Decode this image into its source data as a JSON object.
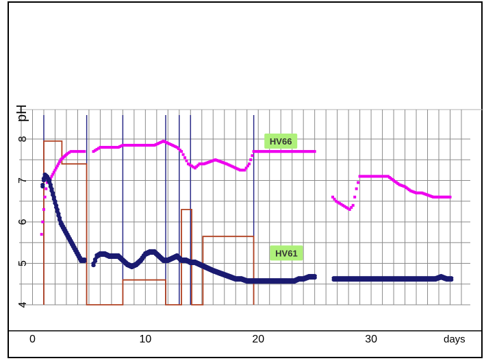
{
  "chart_data": {
    "type": "scatter",
    "x_axis": {
      "label": "days",
      "range": [
        -1.5,
        38.5
      ],
      "major_ticks": [
        0,
        10,
        20,
        30
      ],
      "tick_labels": [
        "0",
        "10",
        "20",
        "30"
      ],
      "minor_tick_step": 1
    },
    "y_axis": {
      "label": "pH",
      "range": [
        3.9,
        8.4
      ],
      "ticks": [
        4,
        5,
        6,
        7,
        8
      ],
      "tick_labels": [
        "4",
        "5",
        "6",
        "7",
        "8"
      ]
    },
    "grid": true,
    "series": [
      {
        "name": "HV66",
        "color": "#ee00ee",
        "marker": "square",
        "segments": [
          [
            [
              0.8,
              5.7
            ],
            [
              0.9,
              6.0
            ],
            [
              1.0,
              6.3
            ],
            [
              1.1,
              6.6
            ],
            [
              1.2,
              6.8
            ],
            [
              1.3,
              6.95
            ],
            [
              1.5,
              7.0
            ],
            [
              1.7,
              7.1
            ],
            [
              1.9,
              7.2
            ],
            [
              2.1,
              7.3
            ],
            [
              2.3,
              7.4
            ],
            [
              2.5,
              7.5
            ],
            [
              2.7,
              7.55
            ],
            [
              2.9,
              7.6
            ],
            [
              3.1,
              7.65
            ],
            [
              3.4,
              7.7
            ],
            [
              3.7,
              7.7
            ],
            [
              4.0,
              7.7
            ],
            [
              4.3,
              7.7
            ],
            [
              4.6,
              7.7
            ]
          ],
          [
            [
              5.4,
              7.7
            ],
            [
              5.7,
              7.75
            ],
            [
              6.0,
              7.8
            ],
            [
              6.4,
              7.8
            ],
            [
              6.8,
              7.8
            ],
            [
              7.2,
              7.8
            ],
            [
              7.6,
              7.8
            ],
            [
              8.0,
              7.85
            ],
            [
              8.4,
              7.85
            ],
            [
              8.8,
              7.85
            ],
            [
              9.2,
              7.85
            ],
            [
              9.6,
              7.85
            ],
            [
              10.0,
              7.85
            ],
            [
              10.4,
              7.85
            ],
            [
              10.8,
              7.85
            ],
            [
              11.2,
              7.9
            ],
            [
              11.6,
              7.95
            ],
            [
              12.0,
              7.9
            ],
            [
              12.4,
              7.85
            ],
            [
              12.8,
              7.8
            ],
            [
              13.2,
              7.7
            ],
            [
              13.5,
              7.55
            ],
            [
              13.8,
              7.4
            ],
            [
              14.1,
              7.35
            ],
            [
              14.4,
              7.3
            ],
            [
              14.8,
              7.4
            ],
            [
              15.2,
              7.4
            ],
            [
              15.7,
              7.45
            ],
            [
              16.2,
              7.5
            ],
            [
              16.7,
              7.45
            ],
            [
              17.2,
              7.4
            ],
            [
              17.6,
              7.35
            ],
            [
              18.0,
              7.3
            ],
            [
              18.4,
              7.25
            ],
            [
              18.8,
              7.25
            ],
            [
              19.2,
              7.4
            ],
            [
              19.6,
              7.7
            ],
            [
              20.0,
              7.7
            ],
            [
              20.5,
              7.7
            ],
            [
              21.0,
              7.7
            ],
            [
              21.5,
              7.7
            ],
            [
              22.0,
              7.7
            ],
            [
              22.5,
              7.7
            ],
            [
              23.0,
              7.7
            ],
            [
              23.5,
              7.7
            ],
            [
              24.0,
              7.7
            ],
            [
              24.5,
              7.7
            ],
            [
              25.0,
              7.7
            ]
          ],
          [
            [
              26.6,
              6.6
            ],
            [
              26.9,
              6.5
            ],
            [
              27.2,
              6.45
            ],
            [
              27.5,
              6.4
            ],
            [
              27.8,
              6.35
            ],
            [
              28.1,
              6.3
            ],
            [
              28.4,
              6.4
            ],
            [
              28.7,
              6.8
            ],
            [
              29.0,
              7.1
            ],
            [
              29.5,
              7.1
            ],
            [
              30.0,
              7.1
            ],
            [
              30.5,
              7.1
            ],
            [
              31.0,
              7.1
            ],
            [
              31.5,
              7.1
            ],
            [
              32.0,
              7.0
            ],
            [
              32.5,
              6.9
            ],
            [
              33.0,
              6.85
            ],
            [
              33.5,
              6.75
            ],
            [
              34.0,
              6.7
            ],
            [
              34.5,
              6.7
            ],
            [
              35.0,
              6.65
            ],
            [
              35.5,
              6.6
            ],
            [
              36.0,
              6.6
            ],
            [
              36.5,
              6.6
            ],
            [
              37.0,
              6.6
            ]
          ]
        ]
      },
      {
        "name": "HV61",
        "color": "#1a1a70",
        "marker": "oval",
        "segments": [
          [
            [
              0.9,
              6.9
            ],
            [
              1.0,
              7.05
            ],
            [
              1.1,
              7.15
            ],
            [
              1.3,
              7.1
            ],
            [
              1.5,
              7.0
            ],
            [
              1.7,
              6.8
            ],
            [
              1.9,
              6.6
            ],
            [
              2.1,
              6.4
            ],
            [
              2.3,
              6.2
            ],
            [
              2.5,
              6.0
            ],
            [
              2.7,
              5.9
            ],
            [
              2.9,
              5.8
            ],
            [
              3.1,
              5.7
            ],
            [
              3.3,
              5.6
            ],
            [
              3.5,
              5.5
            ],
            [
              3.7,
              5.4
            ],
            [
              3.9,
              5.3
            ],
            [
              4.1,
              5.2
            ],
            [
              4.3,
              5.1
            ],
            [
              4.6,
              5.1
            ]
          ],
          [
            [
              5.4,
              5.0
            ],
            [
              5.7,
              5.2
            ],
            [
              6.0,
              5.25
            ],
            [
              6.4,
              5.25
            ],
            [
              6.8,
              5.2
            ],
            [
              7.2,
              5.2
            ],
            [
              7.6,
              5.2
            ],
            [
              8.0,
              5.1
            ],
            [
              8.4,
              5.0
            ],
            [
              8.8,
              4.95
            ],
            [
              9.2,
              5.0
            ],
            [
              9.6,
              5.1
            ],
            [
              10.0,
              5.25
            ],
            [
              10.4,
              5.3
            ],
            [
              10.8,
              5.3
            ],
            [
              11.2,
              5.2
            ],
            [
              11.6,
              5.1
            ],
            [
              12.0,
              5.1
            ],
            [
              12.4,
              5.15
            ],
            [
              12.8,
              5.2
            ],
            [
              13.2,
              5.1
            ],
            [
              13.6,
              5.1
            ],
            [
              14.0,
              5.05
            ],
            [
              14.4,
              5.05
            ],
            [
              14.8,
              5.0
            ],
            [
              15.2,
              4.95
            ],
            [
              15.6,
              4.9
            ],
            [
              16.0,
              4.85
            ],
            [
              16.5,
              4.8
            ],
            [
              17.0,
              4.75
            ],
            [
              17.5,
              4.7
            ],
            [
              18.0,
              4.65
            ],
            [
              18.5,
              4.65
            ],
            [
              19.0,
              4.6
            ],
            [
              19.5,
              4.6
            ],
            [
              20.0,
              4.6
            ],
            [
              20.5,
              4.6
            ],
            [
              21.0,
              4.6
            ],
            [
              21.5,
              4.6
            ],
            [
              22.0,
              4.6
            ],
            [
              22.5,
              4.6
            ],
            [
              23.2,
              4.6
            ],
            [
              23.6,
              4.65
            ],
            [
              24.0,
              4.65
            ],
            [
              24.5,
              4.7
            ],
            [
              25.0,
              4.7
            ]
          ],
          [
            [
              26.7,
              4.65
            ],
            [
              27.2,
              4.65
            ],
            [
              27.7,
              4.65
            ],
            [
              28.2,
              4.65
            ],
            [
              28.7,
              4.65
            ],
            [
              29.2,
              4.65
            ],
            [
              29.7,
              4.65
            ],
            [
              30.2,
              4.65
            ],
            [
              30.7,
              4.65
            ],
            [
              31.2,
              4.65
            ],
            [
              31.7,
              4.65
            ],
            [
              32.2,
              4.65
            ],
            [
              32.7,
              4.65
            ],
            [
              33.2,
              4.65
            ],
            [
              33.7,
              4.65
            ],
            [
              34.2,
              4.65
            ],
            [
              34.7,
              4.65
            ],
            [
              35.2,
              4.65
            ],
            [
              35.7,
              4.65
            ],
            [
              36.2,
              4.7
            ],
            [
              36.7,
              4.65
            ],
            [
              37.1,
              4.65
            ]
          ]
        ]
      }
    ],
    "step_series": [
      {
        "color": "#b04020",
        "points": [
          [
            1.0,
            4.0
          ],
          [
            1.0,
            7.95
          ],
          [
            2.6,
            7.95
          ],
          [
            2.6,
            7.4
          ],
          [
            4.8,
            7.4
          ],
          [
            4.8,
            4.0
          ],
          [
            8.0,
            4.0
          ],
          [
            8.0,
            4.6
          ],
          [
            11.8,
            4.6
          ],
          [
            11.8,
            4.0
          ],
          [
            13.2,
            4.0
          ],
          [
            13.2,
            6.3
          ],
          [
            14.1,
            6.3
          ],
          [
            14.1,
            4.0
          ],
          [
            15.1,
            4.0
          ],
          [
            15.1,
            5.65
          ],
          [
            19.6,
            5.65
          ],
          [
            19.6,
            4.0
          ]
        ]
      }
    ],
    "vertical_lines": {
      "color": "#2a2a88",
      "x": [
        1.0,
        4.8,
        8.0,
        11.8,
        13.0,
        14.0,
        19.6
      ]
    },
    "annotations": [
      {
        "text": "HV66",
        "x": 22.0,
        "y": 7.95,
        "background": "#aef07a"
      },
      {
        "text": "HV61",
        "x": 22.5,
        "y": 5.25,
        "background": "#aef07a"
      }
    ]
  }
}
